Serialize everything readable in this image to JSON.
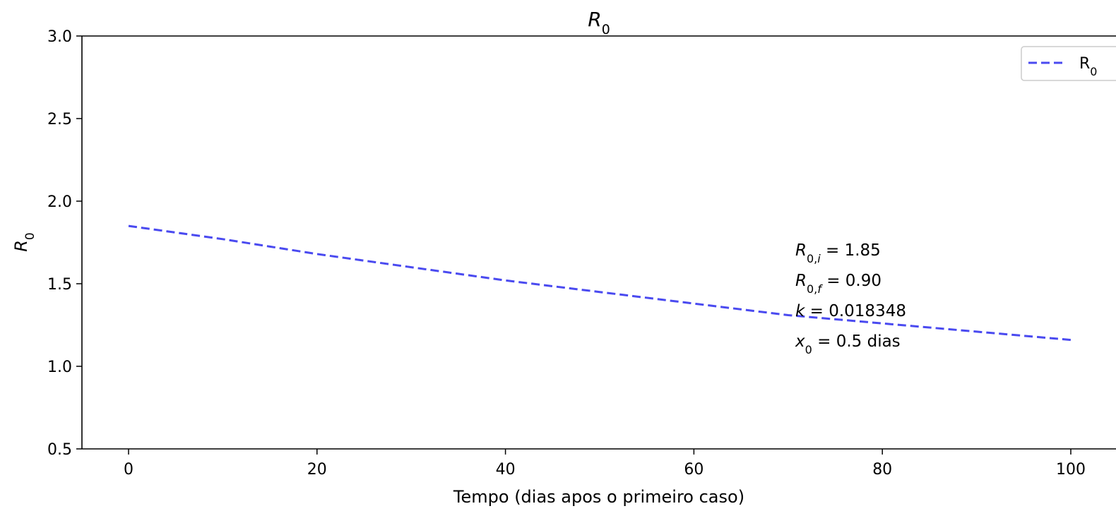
{
  "chart_data": {
    "type": "line",
    "title": "R",
    "title_sub": "0",
    "xlabel": "Tempo (dias apos o primeiro caso)",
    "ylabel": "R",
    "ylabel_sub": "0",
    "xlim": [
      -5,
      103
    ],
    "ylim": [
      0.5,
      3.0
    ],
    "xticks": [
      0,
      20,
      40,
      60,
      80,
      100
    ],
    "yticks": [
      0.5,
      1.0,
      1.5,
      2.0,
      2.5,
      3.0
    ],
    "xtick_labels": [
      "0",
      "20",
      "40",
      "60",
      "80",
      "100"
    ],
    "ytick_labels": [
      "0.5",
      "1.0",
      "1.5",
      "2.0",
      "2.5",
      "3.0"
    ],
    "grid": false,
    "legend": {
      "position": "top-right"
    },
    "series": [
      {
        "name": "R",
        "name_sub": "0",
        "color": "#4a4af0",
        "style": "dashed",
        "x": [
          0,
          10,
          20,
          30,
          40,
          50,
          60,
          70,
          80,
          90,
          100
        ],
        "y": [
          1.85,
          1.77,
          1.68,
          1.6,
          1.52,
          1.45,
          1.38,
          1.31,
          1.26,
          1.21,
          1.16
        ]
      }
    ],
    "annotations": [
      {
        "sym": "R",
        "sub": "0,",
        "sub_it": "i",
        "rest": " = 1.85"
      },
      {
        "sym": "R",
        "sub": "0,",
        "sub_it": "f",
        "rest": " = 0.90"
      },
      {
        "sym": "k",
        "sub": "",
        "sub_it": "",
        "rest": " =  0.018348"
      },
      {
        "sym": "x",
        "sub": "0",
        "sub_it": "",
        "rest": " =   0.5 dias"
      }
    ]
  }
}
